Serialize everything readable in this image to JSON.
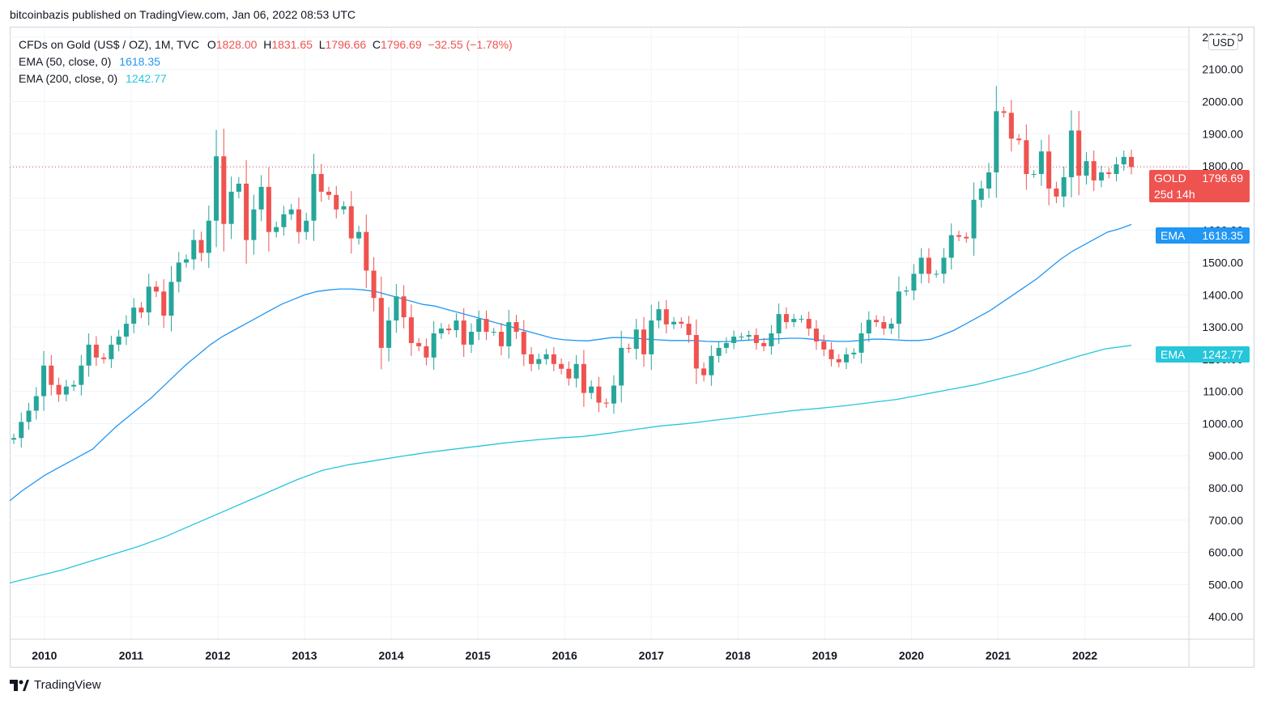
{
  "header": {
    "publisher_line": "bitcoinbazis published on TradingView.com, Jan 06, 2022 08:53 UTC"
  },
  "legend": {
    "symbol_line": "CFDs on Gold (US$ / OZ), 1M, TVC",
    "o_key": "O",
    "o_val": "1828.00",
    "h_key": "H",
    "h_val": "1831.65",
    "l_key": "L",
    "l_val": "1796.66",
    "c_key": "C",
    "c_val": "1796.69",
    "change": "−32.55 (−1.78%)",
    "ema50_label": "EMA (50, close, 0)",
    "ema50_val": "1618.35",
    "ema200_label": "EMA (200, close, 0)",
    "ema200_val": "1242.77"
  },
  "currency": "USD",
  "tags": {
    "gold_name": "GOLD",
    "gold_price": "1796.69",
    "gold_countdown": "25d 14h",
    "ema50_name": "EMA",
    "ema50_price": "1618.35",
    "ema200_name": "EMA",
    "ema200_price": "1242.77"
  },
  "footer": {
    "brand": "TradingView"
  },
  "colors": {
    "up": "#26a69a",
    "down": "#ef5350",
    "ema50": "#2196f3",
    "ema200": "#26c6da",
    "grid": "#f0f3fa"
  },
  "chart_data": {
    "type": "candlestick",
    "title": "CFDs on Gold (US$ / OZ), 1M, TVC",
    "y_axis_side": "right",
    "ylim": [
      330,
      2230
    ],
    "y_ticks": [
      "2200.00",
      "2100.00",
      "2000.00",
      "1900.00",
      "1800.00",
      "1700.00",
      "1600.00",
      "1500.00",
      "1400.00",
      "1300.00",
      "1200.00",
      "1100.00",
      "1000.00",
      "900.00",
      "800.00",
      "700.00",
      "600.00",
      "500.00",
      "400.00"
    ],
    "x_ticks": [
      "2010",
      "2011",
      "2012",
      "2013",
      "2014",
      "2015",
      "2016",
      "2017",
      "2018",
      "2019",
      "2020",
      "2021",
      "2022"
    ],
    "x_range_years": [
      2009.6,
      2023.2
    ],
    "last_price": 1796.69,
    "closes": [
      955,
      1005,
      1040,
      1085,
      1180,
      1120,
      1090,
      1115,
      1120,
      1180,
      1245,
      1205,
      1200,
      1245,
      1270,
      1310,
      1360,
      1345,
      1425,
      1410,
      1335,
      1440,
      1500,
      1510,
      1570,
      1530,
      1630,
      1830,
      1620,
      1720,
      1745,
      1570,
      1665,
      1735,
      1595,
      1610,
      1650,
      1665,
      1595,
      1630,
      1775,
      1720,
      1710,
      1665,
      1675,
      1575,
      1595,
      1475,
      1390,
      1235,
      1320,
      1395,
      1330,
      1250,
      1240,
      1205,
      1280,
      1295,
      1290,
      1320,
      1245,
      1285,
      1325,
      1285,
      1285,
      1240,
      1315,
      1285,
      1215,
      1185,
      1200,
      1215,
      1185,
      1170,
      1140,
      1185,
      1095,
      1115,
      1065,
      1062,
      1118,
      1235,
      1232,
      1292,
      1215,
      1320,
      1355,
      1308,
      1316,
      1310,
      1275,
      1171,
      1150,
      1210,
      1235,
      1250,
      1270,
      1270,
      1275,
      1250,
      1240,
      1280,
      1340,
      1315,
      1325,
      1325,
      1295,
      1255,
      1230,
      1200,
      1190,
      1215,
      1220,
      1280,
      1322,
      1315,
      1295,
      1310,
      1410,
      1413,
      1465,
      1515,
      1465,
      1465,
      1515,
      1585,
      1580,
      1575,
      1695,
      1730,
      1780,
      1970,
      1965,
      1885,
      1880,
      1775,
      1775,
      1845,
      1730,
      1705,
      1765,
      1910,
      1770,
      1815,
      1755,
      1780,
      1775,
      1805,
      1828,
      1796.69
    ],
    "ema50": [
      760,
      790,
      815,
      840,
      860,
      880,
      900,
      920,
      955,
      990,
      1020,
      1050,
      1080,
      1115,
      1150,
      1185,
      1215,
      1245,
      1270,
      1290,
      1310,
      1330,
      1350,
      1370,
      1385,
      1400,
      1410,
      1415,
      1418,
      1418,
      1415,
      1410,
      1400,
      1390,
      1380,
      1370,
      1365,
      1355,
      1345,
      1335,
      1325,
      1315,
      1305,
      1295,
      1285,
      1275,
      1265,
      1260,
      1258,
      1257,
      1262,
      1267,
      1267,
      1265,
      1262,
      1260,
      1258,
      1258,
      1258,
      1255,
      1254,
      1255,
      1258,
      1260,
      1262,
      1263,
      1265,
      1265,
      1262,
      1258,
      1255,
      1255,
      1258,
      1262,
      1262,
      1260,
      1258,
      1258,
      1262,
      1275,
      1290,
      1310,
      1330,
      1350,
      1375,
      1400,
      1425,
      1450,
      1480,
      1510,
      1535,
      1555,
      1575,
      1595,
      1605,
      1618.35
    ],
    "ema200": [
      505,
      525,
      545,
      570,
      595,
      620,
      650,
      685,
      720,
      755,
      790,
      825,
      855,
      872,
      885,
      898,
      910,
      920,
      930,
      940,
      948,
      955,
      960,
      970,
      982,
      993,
      1000,
      1010,
      1020,
      1030,
      1040,
      1047,
      1055,
      1065,
      1075,
      1090,
      1105,
      1120,
      1140,
      1160,
      1185,
      1210,
      1232,
      1242.77
    ],
    "series": [
      {
        "name": "EMA (50, close, 0)",
        "last": 1618.35
      },
      {
        "name": "EMA (200, close, 0)",
        "last": 1242.77
      }
    ]
  }
}
